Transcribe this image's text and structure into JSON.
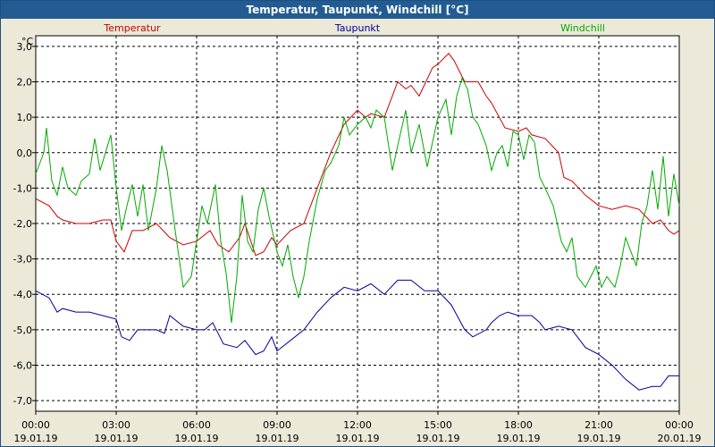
{
  "chart_data": {
    "type": "line",
    "title": "Temperatur, Taupunkt, Windchill [°C]",
    "ylabel": "°C",
    "ylim": [
      -7.3,
      3.3
    ],
    "xlim": [
      0,
      24
    ],
    "grid": true,
    "legend_placement": "top",
    "yticks": [
      {
        "value": 3,
        "label": "3,0"
      },
      {
        "value": 2,
        "label": "2,0"
      },
      {
        "value": 1,
        "label": "1,0"
      },
      {
        "value": 0,
        "label": "0,0"
      },
      {
        "value": -1,
        "label": "-1,0"
      },
      {
        "value": -2,
        "label": "-2,0"
      },
      {
        "value": -3,
        "label": "-3,0"
      },
      {
        "value": -4,
        "label": "-4,0"
      },
      {
        "value": -5,
        "label": "-5,0"
      },
      {
        "value": -6,
        "label": "-6,0"
      },
      {
        "value": -7,
        "label": "-7,0"
      }
    ],
    "xticks": [
      {
        "value": 0,
        "time": "00:00",
        "date": "19.01.19"
      },
      {
        "value": 3,
        "time": "03:00",
        "date": "19.01.19"
      },
      {
        "value": 6,
        "time": "06:00",
        "date": "19.01.19"
      },
      {
        "value": 9,
        "time": "09:00",
        "date": "19.01.19"
      },
      {
        "value": 12,
        "time": "12:00",
        "date": "19.01.19"
      },
      {
        "value": 15,
        "time": "15:00",
        "date": "19.01.19"
      },
      {
        "value": 18,
        "time": "18:00",
        "date": "19.01.19"
      },
      {
        "value": 21,
        "time": "21:00",
        "date": "19.01.19"
      },
      {
        "value": 24,
        "time": "00:00",
        "date": "20.01.19"
      }
    ],
    "series": [
      {
        "name": "Temperatur",
        "color": "#cc0000",
        "points": [
          [
            0,
            -1.3
          ],
          [
            0.5,
            -1.5
          ],
          [
            0.8,
            -1.8
          ],
          [
            1,
            -1.9
          ],
          [
            1.5,
            -2.0
          ],
          [
            2,
            -2.0
          ],
          [
            2.5,
            -1.9
          ],
          [
            2.8,
            -1.9
          ],
          [
            3,
            -2.5
          ],
          [
            3.3,
            -2.8
          ],
          [
            3.6,
            -2.2
          ],
          [
            4,
            -2.2
          ],
          [
            4.5,
            -2.0
          ],
          [
            5,
            -2.4
          ],
          [
            5.5,
            -2.6
          ],
          [
            6,
            -2.5
          ],
          [
            6.5,
            -2.2
          ],
          [
            6.8,
            -2.6
          ],
          [
            7.2,
            -2.8
          ],
          [
            7.6,
            -2.4
          ],
          [
            7.8,
            -2.0
          ],
          [
            8.2,
            -2.9
          ],
          [
            8.5,
            -2.8
          ],
          [
            8.8,
            -2.4
          ],
          [
            9,
            -2.6
          ],
          [
            9.5,
            -2.2
          ],
          [
            10,
            -2.0
          ],
          [
            10.5,
            -1.0
          ],
          [
            11,
            0.0
          ],
          [
            11.5,
            0.8
          ],
          [
            12,
            1.2
          ],
          [
            12.3,
            1.0
          ],
          [
            12.5,
            1.1
          ],
          [
            13,
            1.0
          ],
          [
            13.5,
            2.0
          ],
          [
            13.8,
            1.8
          ],
          [
            14,
            1.9
          ],
          [
            14.3,
            1.6
          ],
          [
            14.8,
            2.4
          ],
          [
            15,
            2.5
          ],
          [
            15.4,
            2.8
          ],
          [
            15.6,
            2.6
          ],
          [
            15.8,
            2.3
          ],
          [
            16,
            2.0
          ],
          [
            16.5,
            2.0
          ],
          [
            16.8,
            1.6
          ],
          [
            17,
            1.4
          ],
          [
            17.5,
            0.7
          ],
          [
            18,
            0.6
          ],
          [
            18.3,
            0.7
          ],
          [
            18.5,
            0.5
          ],
          [
            19,
            0.4
          ],
          [
            19.5,
            0.0
          ],
          [
            19.7,
            -0.7
          ],
          [
            20,
            -0.8
          ],
          [
            20.5,
            -1.2
          ],
          [
            21,
            -1.5
          ],
          [
            21.5,
            -1.6
          ],
          [
            22,
            -1.5
          ],
          [
            22.5,
            -1.6
          ],
          [
            23,
            -2.0
          ],
          [
            23.3,
            -1.9
          ],
          [
            23.6,
            -2.2
          ],
          [
            23.8,
            -2.3
          ],
          [
            24,
            -2.2
          ]
        ]
      },
      {
        "name": "Taupunkt",
        "color": "#000099",
        "points": [
          [
            0,
            -3.9
          ],
          [
            0.5,
            -4.1
          ],
          [
            0.8,
            -4.5
          ],
          [
            1,
            -4.4
          ],
          [
            1.5,
            -4.5
          ],
          [
            2,
            -4.5
          ],
          [
            2.5,
            -4.6
          ],
          [
            3,
            -4.7
          ],
          [
            3.2,
            -5.2
          ],
          [
            3.5,
            -5.3
          ],
          [
            3.8,
            -5.0
          ],
          [
            4,
            -5.0
          ],
          [
            4.5,
            -5.0
          ],
          [
            4.8,
            -5.1
          ],
          [
            5,
            -4.6
          ],
          [
            5.5,
            -4.9
          ],
          [
            6,
            -5.0
          ],
          [
            6.3,
            -5.0
          ],
          [
            6.6,
            -4.8
          ],
          [
            7,
            -5.4
          ],
          [
            7.5,
            -5.5
          ],
          [
            7.8,
            -5.3
          ],
          [
            8.2,
            -5.7
          ],
          [
            8.5,
            -5.6
          ],
          [
            8.8,
            -5.2
          ],
          [
            9,
            -5.6
          ],
          [
            9.5,
            -5.3
          ],
          [
            10,
            -5.0
          ],
          [
            10.5,
            -4.5
          ],
          [
            11,
            -4.1
          ],
          [
            11.5,
            -3.8
          ],
          [
            12,
            -3.9
          ],
          [
            12.5,
            -3.7
          ],
          [
            13,
            -4.0
          ],
          [
            13.5,
            -3.6
          ],
          [
            14,
            -3.6
          ],
          [
            14.5,
            -3.9
          ],
          [
            15,
            -3.9
          ],
          [
            15.5,
            -4.3
          ],
          [
            16,
            -5.0
          ],
          [
            16.3,
            -5.2
          ],
          [
            16.8,
            -5.0
          ],
          [
            17,
            -4.8
          ],
          [
            17.3,
            -4.6
          ],
          [
            17.6,
            -4.5
          ],
          [
            18,
            -4.6
          ],
          [
            18.5,
            -4.6
          ],
          [
            18.8,
            -4.8
          ],
          [
            19,
            -5.0
          ],
          [
            19.5,
            -4.9
          ],
          [
            20,
            -5.0
          ],
          [
            20.5,
            -5.5
          ],
          [
            21,
            -5.7
          ],
          [
            21.5,
            -6.0
          ],
          [
            22,
            -6.4
          ],
          [
            22.5,
            -6.7
          ],
          [
            23,
            -6.6
          ],
          [
            23.3,
            -6.6
          ],
          [
            23.6,
            -6.3
          ],
          [
            24,
            -6.3
          ]
        ]
      },
      {
        "name": "Windchill",
        "color": "#00aa00",
        "points": [
          [
            0,
            -0.6
          ],
          [
            0.3,
            0.0
          ],
          [
            0.4,
            0.7
          ],
          [
            0.6,
            -0.8
          ],
          [
            0.8,
            -1.2
          ],
          [
            1,
            -0.4
          ],
          [
            1.2,
            -1.0
          ],
          [
            1.5,
            -1.2
          ],
          [
            1.7,
            -0.8
          ],
          [
            2,
            -0.6
          ],
          [
            2.2,
            0.4
          ],
          [
            2.4,
            -0.5
          ],
          [
            2.6,
            0.0
          ],
          [
            2.8,
            0.5
          ],
          [
            3,
            -1.0
          ],
          [
            3.2,
            -2.2
          ],
          [
            3.4,
            -1.5
          ],
          [
            3.6,
            -0.9
          ],
          [
            3.8,
            -1.8
          ],
          [
            4,
            -0.9
          ],
          [
            4.2,
            -2.2
          ],
          [
            4.5,
            -1.0
          ],
          [
            4.7,
            0.2
          ],
          [
            4.9,
            -0.5
          ],
          [
            5.2,
            -2.2
          ],
          [
            5.5,
            -3.8
          ],
          [
            5.8,
            -3.5
          ],
          [
            6,
            -2.5
          ],
          [
            6.2,
            -1.5
          ],
          [
            6.4,
            -2.0
          ],
          [
            6.7,
            -0.9
          ],
          [
            6.9,
            -2.5
          ],
          [
            7.1,
            -3.4
          ],
          [
            7.3,
            -4.8
          ],
          [
            7.5,
            -3.5
          ],
          [
            7.7,
            -1.2
          ],
          [
            7.9,
            -2.5
          ],
          [
            8.1,
            -2.8
          ],
          [
            8.3,
            -1.6
          ],
          [
            8.5,
            -1.0
          ],
          [
            8.7,
            -1.8
          ],
          [
            9,
            -2.8
          ],
          [
            9.2,
            -3.2
          ],
          [
            9.4,
            -2.6
          ],
          [
            9.6,
            -3.5
          ],
          [
            9.8,
            -4.1
          ],
          [
            10,
            -3.5
          ],
          [
            10.2,
            -2.5
          ],
          [
            10.5,
            -1.3
          ],
          [
            10.8,
            -0.5
          ],
          [
            11,
            -0.3
          ],
          [
            11.3,
            0.2
          ],
          [
            11.5,
            1.0
          ],
          [
            11.7,
            0.5
          ],
          [
            12,
            0.8
          ],
          [
            12.3,
            1.0
          ],
          [
            12.5,
            0.7
          ],
          [
            12.7,
            1.2
          ],
          [
            13,
            1.0
          ],
          [
            13.3,
            -0.5
          ],
          [
            13.5,
            0.2
          ],
          [
            13.8,
            1.2
          ],
          [
            14,
            0.0
          ],
          [
            14.3,
            0.8
          ],
          [
            14.6,
            -0.4
          ],
          [
            15,
            1.0
          ],
          [
            15.3,
            1.5
          ],
          [
            15.5,
            0.5
          ],
          [
            15.7,
            1.6
          ],
          [
            15.9,
            2.1
          ],
          [
            16.1,
            1.8
          ],
          [
            16.3,
            1.0
          ],
          [
            16.5,
            0.8
          ],
          [
            16.8,
            0.2
          ],
          [
            17,
            -0.5
          ],
          [
            17.2,
            0.0
          ],
          [
            17.4,
            0.2
          ],
          [
            17.6,
            -0.4
          ],
          [
            17.8,
            0.6
          ],
          [
            18,
            0.5
          ],
          [
            18.2,
            -0.2
          ],
          [
            18.4,
            0.5
          ],
          [
            18.6,
            0.3
          ],
          [
            18.8,
            -0.7
          ],
          [
            19,
            -1.0
          ],
          [
            19.3,
            -1.5
          ],
          [
            19.6,
            -2.5
          ],
          [
            19.8,
            -2.8
          ],
          [
            20,
            -2.4
          ],
          [
            20.2,
            -3.5
          ],
          [
            20.5,
            -3.8
          ],
          [
            20.7,
            -3.5
          ],
          [
            20.9,
            -3.2
          ],
          [
            21.1,
            -3.8
          ],
          [
            21.3,
            -3.5
          ],
          [
            21.6,
            -3.8
          ],
          [
            21.8,
            -3.2
          ],
          [
            22,
            -2.4
          ],
          [
            22.2,
            -2.8
          ],
          [
            22.4,
            -3.2
          ],
          [
            22.6,
            -2.0
          ],
          [
            22.8,
            -1.5
          ],
          [
            23,
            -0.5
          ],
          [
            23.2,
            -1.6
          ],
          [
            23.4,
            -0.1
          ],
          [
            23.6,
            -1.8
          ],
          [
            23.8,
            -0.6
          ],
          [
            24,
            -1.5
          ]
        ]
      }
    ]
  }
}
